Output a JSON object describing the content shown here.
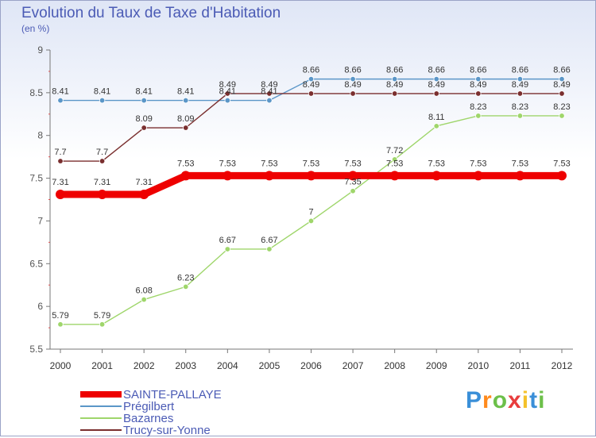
{
  "title": "Evolution du Taux de Taxe d'Habitation",
  "subtitle": "(en %)",
  "logo": {
    "text": "Proxiti",
    "colors": [
      "#3a8fd8",
      "#ff8a1c",
      "#6cc04a",
      "#e83d3d",
      "#f4c12a",
      "#3a8fd8",
      "#6cc04a"
    ]
  },
  "chart_data": {
    "type": "line",
    "title": "Evolution du Taux de Taxe d'Habitation",
    "ylabel": "(en %)",
    "xlabel": "",
    "ylim": [
      5.5,
      9
    ],
    "yticks": [
      5.5,
      6,
      6.5,
      7,
      7.5,
      8,
      8.5,
      9
    ],
    "ytick_labels": [
      "5.5",
      "6",
      "6.5",
      "7",
      "7.5",
      "8",
      "8.5",
      "9"
    ],
    "grid": false,
    "x": [
      "2000",
      "2001",
      "2002",
      "2003",
      "2004",
      "2005",
      "2006",
      "2007",
      "2008",
      "2009",
      "2010",
      "2011",
      "2012"
    ],
    "series": [
      {
        "name": "SAINTE-PALLAYE",
        "color": "#ee0000",
        "emphasis": true,
        "values": [
          7.31,
          7.31,
          7.31,
          7.53,
          7.53,
          7.53,
          7.53,
          7.53,
          7.53,
          7.53,
          7.53,
          7.53,
          7.53
        ],
        "labels": [
          "7.31",
          "7.31",
          "7.31",
          "7.53",
          "7.53",
          "7.53",
          "7.53",
          "7.53",
          "7.53",
          "7.53",
          "7.53",
          "7.53",
          "7.53"
        ]
      },
      {
        "name": "Prégilbert",
        "color": "#5b96c8",
        "emphasis": false,
        "values": [
          8.41,
          8.41,
          8.41,
          8.41,
          8.41,
          8.41,
          8.66,
          8.66,
          8.66,
          8.66,
          8.66,
          8.66,
          8.66
        ],
        "labels": [
          "8.41",
          "8.41",
          "8.41",
          "8.41",
          "8.41",
          "8.41",
          "8.66",
          "8.66",
          "8.66",
          "8.66",
          "8.66",
          "8.66",
          "8.66"
        ]
      },
      {
        "name": "Bazarnes",
        "color": "#9fd66b",
        "emphasis": false,
        "values": [
          5.79,
          5.79,
          6.08,
          6.23,
          6.67,
          6.67,
          7,
          7.35,
          7.72,
          8.11,
          8.23,
          8.23,
          8.23
        ],
        "labels": [
          "5.79",
          "5.79",
          "6.08",
          "6.23",
          "6.67",
          "6.67",
          "7",
          "7.35",
          "7.72",
          "8.11",
          "8.23",
          "8.23",
          "8.23"
        ]
      },
      {
        "name": "Trucy-sur-Yonne",
        "color": "#7a2f2f",
        "emphasis": false,
        "values": [
          7.7,
          7.7,
          8.09,
          8.09,
          8.49,
          8.49,
          8.49,
          8.49,
          8.49,
          8.49,
          8.49,
          8.49,
          8.49
        ],
        "labels": [
          "7.7",
          "7.7",
          "8.09",
          "8.09",
          "8.49",
          "8.49",
          "8.49",
          "8.49",
          "8.49",
          "8.49",
          "8.49",
          "8.49",
          "8.49"
        ]
      }
    ],
    "legend": [
      "SAINTE-PALLAYE",
      "Prégilbert",
      "Bazarnes",
      "Trucy-sur-Yonne"
    ],
    "legend_position": "bottom-left"
  }
}
